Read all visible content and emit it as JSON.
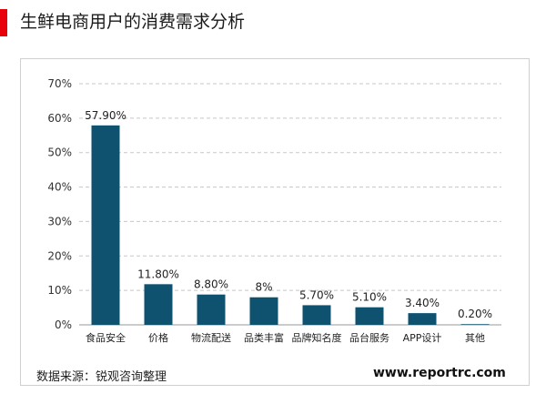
{
  "header": {
    "title": "生鲜电商用户的消费需求分析",
    "accent_color": "#e8000b"
  },
  "chart_data": {
    "type": "bar",
    "title": "",
    "xlabel": "",
    "ylabel": "",
    "ylim": [
      0,
      70
    ],
    "yticks": [
      0,
      10,
      20,
      30,
      40,
      50,
      60,
      70
    ],
    "ytick_labels": [
      "0%",
      "10%",
      "20%",
      "30%",
      "40%",
      "50%",
      "60%",
      "70%"
    ],
    "categories": [
      "食品安全",
      "价格",
      "物流配送",
      "品类丰富",
      "品牌知名度",
      "品台服务",
      "APP设计",
      "其他"
    ],
    "values": [
      57.9,
      11.8,
      8.8,
      8,
      5.7,
      5.1,
      3.4,
      0.2
    ],
    "data_labels": [
      "57.90%",
      "11.80%",
      "8.80%",
      "8%",
      "5.70%",
      "5.10%",
      "3.40%",
      "0.20%"
    ],
    "bar_color": "#0e5270",
    "grid": true,
    "grid_style": "dashed",
    "legend": "none"
  },
  "footer": {
    "source": "数据来源：锐观咨询整理",
    "website": "www.reportrc.com"
  }
}
